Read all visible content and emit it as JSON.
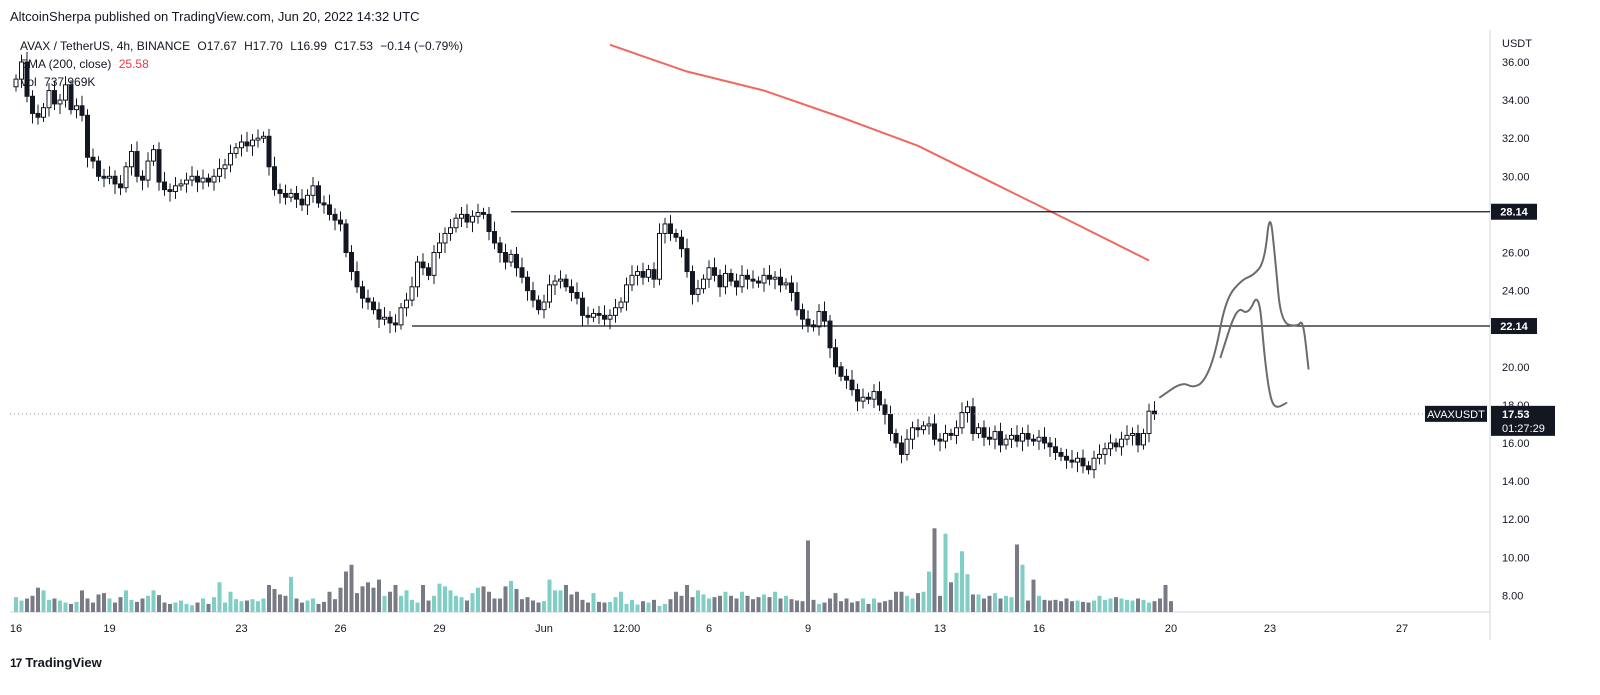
{
  "header": {
    "published": "AltcoinSherpa published on TradingView.com, Jun 20, 2022 14:32 UTC"
  },
  "legend": {
    "symbol": "AVAX / TetherUS, 4h, BINANCE",
    "open": "O17.67",
    "high": "H17.70",
    "low": "L16.99",
    "close": "C17.53",
    "change": "−0.14 (−0.79%)",
    "ema_label": "EMA (200, close)",
    "ema_value": "25.58",
    "vol_label": "Vol",
    "vol_value": "737.969K"
  },
  "footer": {
    "brand": "TradingView",
    "logo_mark": "17"
  },
  "colors": {
    "up": "#ffffff",
    "down": "#131722",
    "vol_up": "#7fcfc6",
    "vol_down": "#787b86",
    "ema": "#f0685e",
    "drawing": "#6b6b6b"
  },
  "chart_data": {
    "type": "candlestick",
    "symbol": "AVAX / TetherUS, 4h, BINANCE",
    "ylabel": "USDT",
    "ylim": [
      6.95,
      37.7
    ],
    "yticks": [
      "36.00",
      "34.00",
      "32.00",
      "30.00",
      "28.00",
      "26.00",
      "24.00",
      "22.00",
      "20.00",
      "18.00",
      "16.00",
      "14.00",
      "12.00",
      "10.00",
      "8.00"
    ],
    "x_ticks": [
      {
        "label": "16",
        "index": 0
      },
      {
        "label": "19",
        "index": 17
      },
      {
        "label": "23",
        "index": 41
      },
      {
        "label": "26",
        "index": 59
      },
      {
        "label": "29",
        "index": 77
      },
      {
        "label": "Jun",
        "index": 96
      },
      {
        "label": "12:00",
        "index": 111
      },
      {
        "label": "6",
        "index": 126
      },
      {
        "label": "9",
        "index": 144
      },
      {
        "label": "13",
        "index": 168
      },
      {
        "label": "16",
        "index": 186
      },
      {
        "label": "20",
        "index": 210
      },
      {
        "label": "23",
        "index": 228
      },
      {
        "label": "27",
        "index": 252
      }
    ],
    "candles_close": [
      35.1,
      36.0,
      34.2,
      33.3,
      33.1,
      33.6,
      34.5,
      33.8,
      34.0,
      34.8,
      33.5,
      33.7,
      33.2,
      31.0,
      30.8,
      30.0,
      29.9,
      30.0,
      29.6,
      29.4,
      30.5,
      31.3,
      30.0,
      29.8,
      30.8,
      31.4,
      29.7,
      29.3,
      29.2,
      29.5,
      29.6,
      29.8,
      30.0,
      29.7,
      29.9,
      29.7,
      30.0,
      30.4,
      30.6,
      31.2,
      31.5,
      31.8,
      31.6,
      31.9,
      32.0,
      32.1,
      30.5,
      29.3,
      29.1,
      28.9,
      29.1,
      28.8,
      28.5,
      29.0,
      29.5,
      28.6,
      28.5,
      28.0,
      27.7,
      27.5,
      26.0,
      25.0,
      24.2,
      23.6,
      23.4,
      23.0,
      22.5,
      22.6,
      22.3,
      22.2,
      23.1,
      23.5,
      24.2,
      25.5,
      25.2,
      24.8,
      26.0,
      26.5,
      27.0,
      27.3,
      27.8,
      28.0,
      27.6,
      27.9,
      28.1,
      28.0,
      27.1,
      26.5,
      26.0,
      25.5,
      25.9,
      25.2,
      24.7,
      24.0,
      23.5,
      23.0,
      23.4,
      24.3,
      24.5,
      24.6,
      24.2,
      23.9,
      23.6,
      22.7,
      22.6,
      22.8,
      22.7,
      22.5,
      22.7,
      23.1,
      23.4,
      24.3,
      24.8,
      25.0,
      24.7,
      25.1,
      24.6,
      27.0,
      27.5,
      27.0,
      26.8,
      26.2,
      25.0,
      23.8,
      24.1,
      24.6,
      25.2,
      24.8,
      24.2,
      24.9,
      24.5,
      24.2,
      24.8,
      24.6,
      24.5,
      24.4,
      24.8,
      24.6,
      24.7,
      24.3,
      24.4,
      23.9,
      23.0,
      22.5,
      22.2,
      22.1,
      22.9,
      22.4,
      21.0,
      20.0,
      19.5,
      19.3,
      18.8,
      18.2,
      18.4,
      18.3,
      18.7,
      18.0,
      17.5,
      16.5,
      16.0,
      15.4,
      16.2,
      16.8,
      16.7,
      16.9,
      17.0,
      16.2,
      16.1,
      16.5,
      16.4,
      16.8,
      17.6,
      17.9,
      16.5,
      16.8,
      16.3,
      16.2,
      16.6,
      15.9,
      16.2,
      16.4,
      16.1,
      16.5,
      16.2,
      16.1,
      16.3,
      16.0,
      15.8,
      15.5,
      15.3,
      15.1,
      15.0,
      15.2,
      14.8,
      14.6,
      15.2,
      15.4,
      15.7,
      16.0,
      15.8,
      16.2,
      16.4,
      16.5,
      15.9,
      16.5,
      17.67,
      17.53
    ],
    "volume": [
      1.1,
      0.85,
      1.0,
      1.2,
      1.8,
      1.6,
      0.9,
      1.0,
      0.85,
      0.7,
      0.6,
      0.75,
      1.6,
      1.0,
      0.7,
      1.3,
      1.4,
      1.0,
      0.7,
      1.1,
      1.6,
      0.9,
      0.75,
      1.0,
      1.2,
      1.6,
      1.25,
      0.7,
      0.6,
      0.7,
      0.85,
      0.6,
      0.5,
      0.7,
      1.0,
      0.6,
      1.1,
      2.2,
      0.7,
      1.5,
      0.95,
      0.8,
      0.85,
      0.95,
      0.8,
      1.0,
      2.0,
      1.7,
      1.3,
      1.2,
      2.6,
      1.0,
      0.7,
      0.85,
      1.0,
      0.6,
      0.75,
      1.5,
      0.95,
      1.8,
      3.0,
      3.5,
      1.4,
      1.9,
      2.2,
      1.8,
      2.4,
      1.2,
      1.5,
      2.0,
      1.2,
      1.6,
      0.9,
      0.7,
      2.0,
      0.85,
      1.2,
      2.1,
      1.9,
      1.6,
      1.2,
      1.1,
      0.85,
      1.4,
      1.8,
      1.9,
      1.5,
      1.0,
      1.0,
      1.9,
      2.3,
      1.7,
      0.95,
      1.1,
      0.85,
      0.7,
      0.8,
      2.4,
      1.6,
      1.6,
      2.0,
      1.3,
      1.5,
      0.9,
      0.7,
      1.4,
      0.75,
      0.7,
      0.75,
      1.1,
      1.5,
      0.6,
      0.9,
      0.55,
      0.8,
      0.7,
      0.9,
      0.45,
      0.6,
      0.95,
      1.5,
      1.2,
      2.0,
      1.1,
      1.6,
      1.3,
      1.0,
      1.1,
      1.2,
      1.5,
      1.2,
      1.0,
      1.5,
      1.2,
      0.95,
      1.1,
      1.3,
      1.1,
      1.5,
      1.0,
      1.2,
      0.95,
      0.85,
      0.8,
      0.75,
      0.9,
      0.6,
      0.7,
      1.0,
      1.4,
      0.8,
      1.0,
      0.7,
      0.8,
      1.0,
      0.6,
      1.0,
      0.7,
      0.8,
      0.9,
      1.5,
      1.5,
      1.2,
      1.0,
      1.4,
      1.5,
      1.2,
      1.6,
      1.2,
      1.8,
      2.2,
      1.6,
      1.5,
      1.5,
      1.3,
      1.3,
      1.0,
      1.2,
      1.4,
      1.0,
      1.2,
      1.1,
      1.0,
      0.9,
      0.85,
      0.8,
      1.2,
      0.9,
      0.85,
      0.9,
      0.8,
      1.0,
      0.8,
      0.85,
      0.75,
      0.7,
      0.85,
      1.2,
      0.9,
      1.0,
      1.1,
      1.0,
      0.9,
      0.85,
      1.0,
      0.9,
      0.7,
      0.8,
      1.0,
      2.0,
      0.8
    ],
    "volume_spikes": [
      {
        "index": 144,
        "value": 5.3
      },
      {
        "index": 166,
        "value": 3.0
      },
      {
        "index": 167,
        "value": 6.2
      },
      {
        "index": 169,
        "value": 5.8
      },
      {
        "index": 171,
        "value": 2.9
      },
      {
        "index": 172,
        "value": 4.5
      },
      {
        "index": 173,
        "value": 2.8
      },
      {
        "index": 182,
        "value": 5.0
      },
      {
        "index": 183,
        "value": 3.5
      },
      {
        "index": 185,
        "value": 2.4
      }
    ],
    "ema_200": [
      {
        "index": 108,
        "value": 36.9
      },
      {
        "index": 122,
        "value": 35.5
      },
      {
        "index": 136,
        "value": 34.5
      },
      {
        "index": 150,
        "value": 33.1
      },
      {
        "index": 164,
        "value": 31.6
      },
      {
        "index": 178,
        "value": 29.6
      },
      {
        "index": 192,
        "value": 27.6
      },
      {
        "index": 206,
        "value": 25.58
      }
    ],
    "horizontal_levels": [
      {
        "value": 28.14,
        "label": "28.14",
        "from_index": 90
      },
      {
        "value": 22.14,
        "label": "22.14",
        "from_index": 72
      }
    ],
    "last_price": {
      "label": "AVAXUSDT",
      "value": "17.53",
      "countdown": "01:27:29"
    },
    "projections": [
      [
        [
          208,
          18.4
        ],
        [
          212,
          19.2
        ],
        [
          214,
          18.9
        ],
        [
          216,
          19.2
        ],
        [
          218,
          20.6
        ],
        [
          220,
          23.6
        ],
        [
          223,
          24.6
        ],
        [
          225,
          24.8
        ],
        [
          227,
          25.5
        ],
        [
          228,
          28.3
        ],
        [
          229,
          25.5
        ],
        [
          230,
          22.3
        ],
        [
          233,
          22.1
        ],
        [
          234,
          22.5
        ],
        [
          235,
          19.9
        ]
      ],
      [
        [
          219,
          20.5
        ],
        [
          222,
          23.2
        ],
        [
          224,
          22.7
        ],
        [
          226,
          24.0
        ],
        [
          227,
          20.5
        ],
        [
          228,
          18.4
        ],
        [
          229,
          17.8
        ],
        [
          231,
          18.1
        ]
      ]
    ]
  }
}
